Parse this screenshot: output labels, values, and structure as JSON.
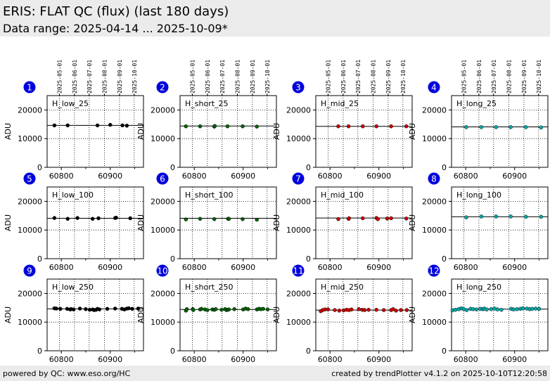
{
  "header": {
    "title": "ERIS: FLAT QC (flux) (last 180 days)",
    "subtitle": "Data range: 2025-04-14 ... 2025-10-09*"
  },
  "footer": {
    "left": "powered by QC: www.eso.org/HC",
    "right": "created by trendPlotter v4.1.2 on 2025-10-10T12:20:58"
  },
  "date_ticks": [
    "2025-05-01",
    "2025-06-01",
    "2025-07-01",
    "2025-08-01",
    "2025-09-01",
    "2025-10-01"
  ],
  "date_tick_mjd": [
    60796,
    60827,
    60857,
    60888,
    60919,
    60949
  ],
  "chart_data": [
    {
      "type": "scatter",
      "number": "1",
      "label": "H_low_25",
      "ylabel": "ADU",
      "color": "#000000",
      "xlim": [
        60771,
        60968
      ],
      "ylim": [
        0,
        25000
      ],
      "xticks": [
        60800,
        60900
      ],
      "yticks": [
        0,
        10000,
        20000
      ],
      "ref": 14600,
      "x": [
        60786,
        60813,
        60874,
        60900,
        60925,
        60934
      ],
      "y": [
        14600,
        14600,
        14600,
        14800,
        14600,
        14500
      ]
    },
    {
      "type": "scatter",
      "number": "2",
      "label": "H_short_25",
      "ylabel": "ADU",
      "color": "#006400",
      "xlim": [
        60771,
        60968
      ],
      "ylim": [
        0,
        25000
      ],
      "xticks": [
        60800,
        60900
      ],
      "yticks": [
        0,
        10000,
        20000
      ],
      "ref": 14400,
      "x": [
        60783,
        60812,
        60841,
        60842,
        60868,
        60899,
        60928
      ],
      "y": [
        14300,
        14300,
        14200,
        14400,
        14300,
        14300,
        14200
      ]
    },
    {
      "type": "scatter",
      "number": "3",
      "label": "H_mid_25",
      "ylabel": "ADU",
      "color": "#cc0000",
      "xlim": [
        60771,
        60968
      ],
      "ylim": [
        0,
        25000
      ],
      "xticks": [
        60800,
        60900
      ],
      "yticks": [
        0,
        10000,
        20000
      ],
      "ref": 14300,
      "x": [
        60817,
        60838,
        60867,
        60895,
        60925,
        60956
      ],
      "y": [
        14300,
        14300,
        14300,
        14300,
        14300,
        14300
      ]
    },
    {
      "type": "scatter",
      "number": "4",
      "label": "H_long_25",
      "ylabel": "ADU",
      "color": "#00aaaa",
      "xlim": [
        60771,
        60968
      ],
      "ylim": [
        0,
        25000
      ],
      "xticks": [
        60800,
        60900
      ],
      "yticks": [
        0,
        10000,
        20000
      ],
      "ref": 14100,
      "x": [
        60801,
        60832,
        60862,
        60892,
        60923,
        60954
      ],
      "y": [
        14000,
        14000,
        14000,
        14000,
        14000,
        13900
      ]
    },
    {
      "type": "scatter",
      "number": "5",
      "label": "H_low_100",
      "ylabel": "ADU",
      "color": "#000000",
      "xlim": [
        60771,
        60968
      ],
      "ylim": [
        0,
        25000
      ],
      "xticks": [
        60800,
        60900
      ],
      "yticks": [
        0,
        10000,
        20000
      ],
      "ref": 14100,
      "x": [
        60786,
        60813,
        60833,
        60864,
        60876,
        60910,
        60912,
        60941
      ],
      "y": [
        14200,
        13900,
        14200,
        13900,
        14100,
        14200,
        14300,
        14100
      ]
    },
    {
      "type": "scatter",
      "number": "6",
      "label": "H_short_100",
      "ylabel": "ADU",
      "color": "#006400",
      "xlim": [
        60771,
        60968
      ],
      "ylim": [
        0,
        25000
      ],
      "xticks": [
        60800,
        60900
      ],
      "yticks": [
        0,
        10000,
        20000
      ],
      "ref": 14100,
      "x": [
        60783,
        60812,
        60841,
        60869,
        60871,
        60899,
        60928
      ],
      "y": [
        13700,
        13900,
        13800,
        13900,
        13900,
        13800,
        13600
      ]
    },
    {
      "type": "scatter",
      "number": "7",
      "label": "H_mid_100",
      "ylabel": "ADU",
      "color": "#cc0000",
      "xlim": [
        60771,
        60968
      ],
      "ylim": [
        0,
        25000
      ],
      "xticks": [
        60800,
        60900
      ],
      "yticks": [
        0,
        10000,
        20000
      ],
      "ref": 14200,
      "x": [
        60817,
        60838,
        60839,
        60867,
        60895,
        60898,
        60917,
        60925,
        60956
      ],
      "y": [
        13800,
        13900,
        14100,
        14100,
        14200,
        13800,
        14000,
        14100,
        14000
      ]
    },
    {
      "type": "scatter",
      "number": "8",
      "label": "H_long_100",
      "ylabel": "ADU",
      "color": "#00aaaa",
      "xlim": [
        60771,
        60968
      ],
      "ylim": [
        0,
        25000
      ],
      "xticks": [
        60800,
        60900
      ],
      "yticks": [
        0,
        10000,
        20000
      ],
      "ref": 14600,
      "x": [
        60801,
        60832,
        60862,
        60892,
        60923,
        60954
      ],
      "y": [
        14400,
        14700,
        14700,
        14700,
        14600,
        14600
      ]
    },
    {
      "type": "scatter",
      "number": "9",
      "label": "H_low_250",
      "ylabel": "ADU",
      "color": "#000000",
      "xlim": [
        60771,
        60968
      ],
      "ylim": [
        0,
        25000
      ],
      "xticks": [
        60800,
        60900
      ],
      "yticks": [
        0,
        10000,
        20000
      ],
      "ref": 14600,
      "x": [
        60786,
        60790,
        60798,
        60812,
        60818,
        60820,
        60825,
        60838,
        60850,
        60858,
        60864,
        60867,
        60871,
        60874,
        60878,
        60894,
        60910,
        60924,
        60929,
        60934,
        60938,
        60945,
        60957
      ],
      "y": [
        14800,
        14700,
        14600,
        14600,
        14400,
        14500,
        14400,
        14700,
        14500,
        14300,
        14400,
        14200,
        14300,
        14600,
        14400,
        14600,
        14700,
        14600,
        14400,
        14700,
        14800,
        14600,
        14700
      ]
    },
    {
      "type": "scatter",
      "number": "10",
      "label": "H_short_250",
      "ylabel": "ADU",
      "color": "#006400",
      "xlim": [
        60771,
        60968
      ],
      "ylim": [
        0,
        25000
      ],
      "xticks": [
        60800,
        60900
      ],
      "yticks": [
        0,
        10000,
        20000
      ],
      "ref": 14400,
      "x": [
        60783,
        60785,
        60797,
        60798,
        60812,
        60815,
        60822,
        60827,
        60837,
        60841,
        60844,
        60856,
        60863,
        60866,
        60868,
        60871,
        60882,
        60900,
        60905,
        60910,
        60928,
        60932,
        60936,
        60941,
        60950
      ],
      "y": [
        14000,
        14500,
        14500,
        14200,
        14400,
        14600,
        14400,
        14200,
        14400,
        14300,
        14500,
        14300,
        14500,
        14200,
        14300,
        14400,
        14500,
        14400,
        14700,
        14500,
        14400,
        14600,
        14500,
        14600,
        14400
      ]
    },
    {
      "type": "scatter",
      "number": "11",
      "label": "H_mid_250",
      "ylabel": "ADU",
      "color": "#cc0000",
      "xlim": [
        60771,
        60968
      ],
      "ylim": [
        0,
        25000
      ],
      "xticks": [
        60800,
        60900
      ],
      "yticks": [
        0,
        10000,
        20000
      ],
      "ref": 14200,
      "x": [
        60781,
        60785,
        60790,
        60796,
        60810,
        60819,
        60828,
        60834,
        60839,
        60844,
        60859,
        60866,
        60871,
        60879,
        60895,
        60910,
        60925,
        60929,
        60935,
        60945,
        60957
      ],
      "y": [
        13800,
        14200,
        14400,
        14400,
        14200,
        14000,
        14100,
        14300,
        14200,
        14400,
        14500,
        14300,
        14200,
        14300,
        14300,
        14200,
        14200,
        14500,
        14000,
        14200,
        14200
      ]
    },
    {
      "type": "scatter",
      "number": "12",
      "label": "H_long_250",
      "ylabel": "ADU",
      "color": "#00aaaa",
      "xlim": [
        60771,
        60968
      ],
      "ylim": [
        0,
        25000
      ],
      "xticks": [
        60800,
        60900
      ],
      "yticks": [
        0,
        10000,
        20000
      ],
      "ref": 14500,
      "x": [
        60773,
        60779,
        60786,
        60791,
        60796,
        60802,
        60810,
        60815,
        60822,
        60830,
        60835,
        60838,
        60843,
        60852,
        60859,
        60865,
        60873,
        60893,
        60898,
        60905,
        60912,
        60917,
        60925,
        60931,
        60936,
        60943,
        60950
      ],
      "y": [
        14100,
        14300,
        14500,
        14800,
        14500,
        14200,
        14600,
        14500,
        14400,
        14600,
        14500,
        14700,
        14400,
        14500,
        14700,
        14400,
        14300,
        14600,
        14400,
        14500,
        14600,
        14800,
        14700,
        14500,
        14600,
        14700,
        14600
      ]
    }
  ]
}
